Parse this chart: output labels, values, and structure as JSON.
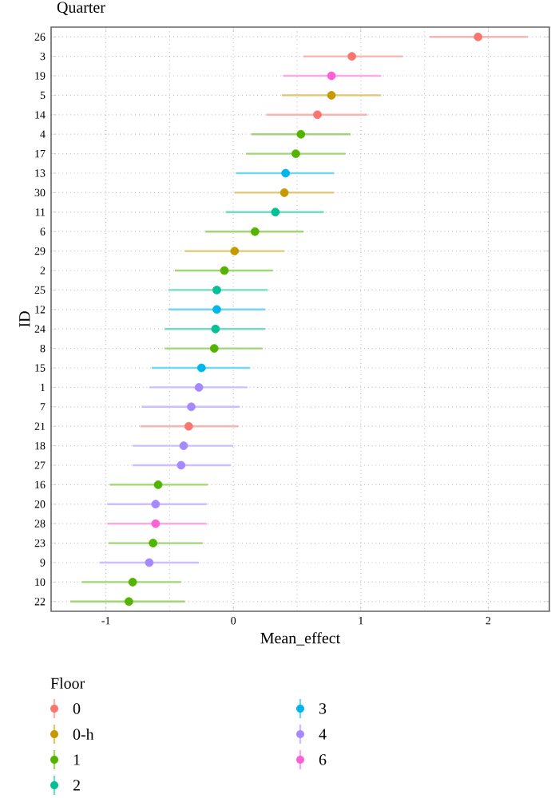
{
  "chart_data": {
    "type": "scatter",
    "orientation": "horizontal",
    "title": "Quarter",
    "xlabel": "Mean_effect",
    "ylabel": "ID",
    "legend_title": "Floor",
    "legend": "bottom",
    "grid": true,
    "marker": "circle",
    "categories": [
      "26",
      "3",
      "19",
      "5",
      "14",
      "4",
      "17",
      "13",
      "30",
      "11",
      "6",
      "29",
      "2",
      "25",
      "12",
      "24",
      "8",
      "15",
      "1",
      "7",
      "21",
      "18",
      "27",
      "16",
      "20",
      "28",
      "23",
      "9",
      "10",
      "22"
    ],
    "xlim": [
      -1.43,
      2.48
    ],
    "xticks": [
      -1,
      0,
      1,
      2
    ],
    "series": [
      {
        "name": "0",
        "color": "#f8766d",
        "values": [
          1.92,
          0.93,
          null,
          null,
          0.66,
          null,
          null,
          null,
          null,
          null,
          null,
          null,
          null,
          null,
          null,
          null,
          null,
          null,
          null,
          null,
          -0.35,
          null,
          null,
          null,
          null,
          null,
          null,
          null,
          null,
          null
        ],
        "errors": [
          [
            1.54,
            2.31
          ],
          [
            0.55,
            1.33
          ],
          null,
          null,
          [
            0.26,
            1.05
          ],
          null,
          null,
          null,
          null,
          null,
          null,
          null,
          null,
          null,
          null,
          null,
          null,
          null,
          null,
          null,
          [
            -0.73,
            0.04
          ],
          null,
          null,
          null,
          null,
          null,
          null,
          null,
          null,
          null
        ]
      },
      {
        "name": "0-h",
        "color": "#c49a00",
        "values": [
          null,
          null,
          null,
          0.77,
          null,
          null,
          null,
          null,
          0.4,
          null,
          null,
          0.01,
          null,
          null,
          null,
          null,
          null,
          null,
          null,
          null,
          null,
          null,
          null,
          null,
          null,
          null,
          null,
          null,
          null,
          null
        ],
        "errors": [
          null,
          null,
          null,
          [
            0.38,
            1.16
          ],
          null,
          null,
          null,
          null,
          [
            0.01,
            0.79
          ],
          null,
          null,
          [
            -0.38,
            0.4
          ],
          null,
          null,
          null,
          null,
          null,
          null,
          null,
          null,
          null,
          null,
          null,
          null,
          null,
          null,
          null,
          null,
          null,
          null
        ]
      },
      {
        "name": "1",
        "color": "#53b400",
        "values": [
          null,
          null,
          null,
          null,
          null,
          0.53,
          0.49,
          null,
          null,
          null,
          0.17,
          null,
          -0.07,
          null,
          null,
          null,
          -0.15,
          null,
          null,
          null,
          null,
          null,
          null,
          -0.59,
          null,
          null,
          -0.63,
          null,
          -0.79,
          -0.82
        ],
        "errors": [
          null,
          null,
          null,
          null,
          null,
          [
            0.14,
            0.92
          ],
          [
            0.1,
            0.88
          ],
          null,
          null,
          null,
          [
            -0.22,
            0.55
          ],
          null,
          [
            -0.46,
            0.31
          ],
          null,
          null,
          null,
          [
            -0.54,
            0.23
          ],
          null,
          null,
          null,
          null,
          null,
          null,
          [
            -0.97,
            -0.2
          ],
          null,
          null,
          [
            -0.98,
            -0.24
          ],
          null,
          [
            -1.19,
            -0.41
          ],
          [
            -1.28,
            -0.38
          ]
        ]
      },
      {
        "name": "2",
        "color": "#00c094",
        "values": [
          null,
          null,
          null,
          null,
          null,
          null,
          null,
          null,
          null,
          0.33,
          null,
          null,
          null,
          -0.13,
          null,
          -0.14,
          null,
          null,
          null,
          null,
          null,
          null,
          null,
          null,
          null,
          null,
          null,
          null,
          null,
          null
        ],
        "errors": [
          null,
          null,
          null,
          null,
          null,
          null,
          null,
          null,
          null,
          [
            -0.06,
            0.71
          ],
          null,
          null,
          null,
          [
            -0.51,
            0.27
          ],
          null,
          [
            -0.54,
            0.25
          ],
          null,
          null,
          null,
          null,
          null,
          null,
          null,
          null,
          null,
          null,
          null,
          null,
          null,
          null
        ]
      },
      {
        "name": "3",
        "color": "#00b6eb",
        "values": [
          null,
          null,
          null,
          null,
          null,
          null,
          null,
          0.41,
          null,
          null,
          null,
          null,
          null,
          null,
          -0.13,
          null,
          null,
          -0.25,
          null,
          null,
          null,
          null,
          null,
          null,
          null,
          null,
          null,
          null,
          null,
          null
        ],
        "errors": [
          null,
          null,
          null,
          null,
          null,
          null,
          null,
          [
            0.02,
            0.79
          ],
          null,
          null,
          null,
          null,
          null,
          null,
          [
            -0.51,
            0.25
          ],
          null,
          null,
          [
            -0.64,
            0.13
          ],
          null,
          null,
          null,
          null,
          null,
          null,
          null,
          null,
          null,
          null,
          null,
          null
        ]
      },
      {
        "name": "4",
        "color": "#a58aff",
        "values": [
          null,
          null,
          null,
          null,
          null,
          null,
          null,
          null,
          null,
          null,
          null,
          null,
          null,
          null,
          null,
          null,
          null,
          null,
          -0.27,
          -0.33,
          null,
          -0.39,
          -0.41,
          null,
          -0.61,
          null,
          null,
          -0.66,
          null,
          null
        ],
        "errors": [
          null,
          null,
          null,
          null,
          null,
          null,
          null,
          null,
          null,
          null,
          null,
          null,
          null,
          null,
          null,
          null,
          null,
          null,
          [
            -0.66,
            0.11
          ],
          [
            -0.72,
            0.05
          ],
          null,
          [
            -0.79,
            0.0
          ],
          [
            -0.79,
            -0.02
          ],
          null,
          [
            -0.99,
            -0.21
          ],
          null,
          null,
          [
            -1.05,
            -0.27
          ],
          null,
          null
        ]
      },
      {
        "name": "6",
        "color": "#fb61d7",
        "values": [
          null,
          null,
          0.77,
          null,
          null,
          null,
          null,
          null,
          null,
          null,
          null,
          null,
          null,
          null,
          null,
          null,
          null,
          null,
          null,
          null,
          null,
          null,
          null,
          null,
          null,
          -0.61,
          null,
          null,
          null,
          null
        ],
        "errors": [
          null,
          null,
          [
            0.39,
            1.16
          ],
          null,
          null,
          null,
          null,
          null,
          null,
          null,
          null,
          null,
          null,
          null,
          null,
          null,
          null,
          null,
          null,
          null,
          null,
          null,
          null,
          null,
          null,
          [
            -0.99,
            -0.21
          ],
          null,
          null,
          null,
          null
        ]
      }
    ]
  }
}
